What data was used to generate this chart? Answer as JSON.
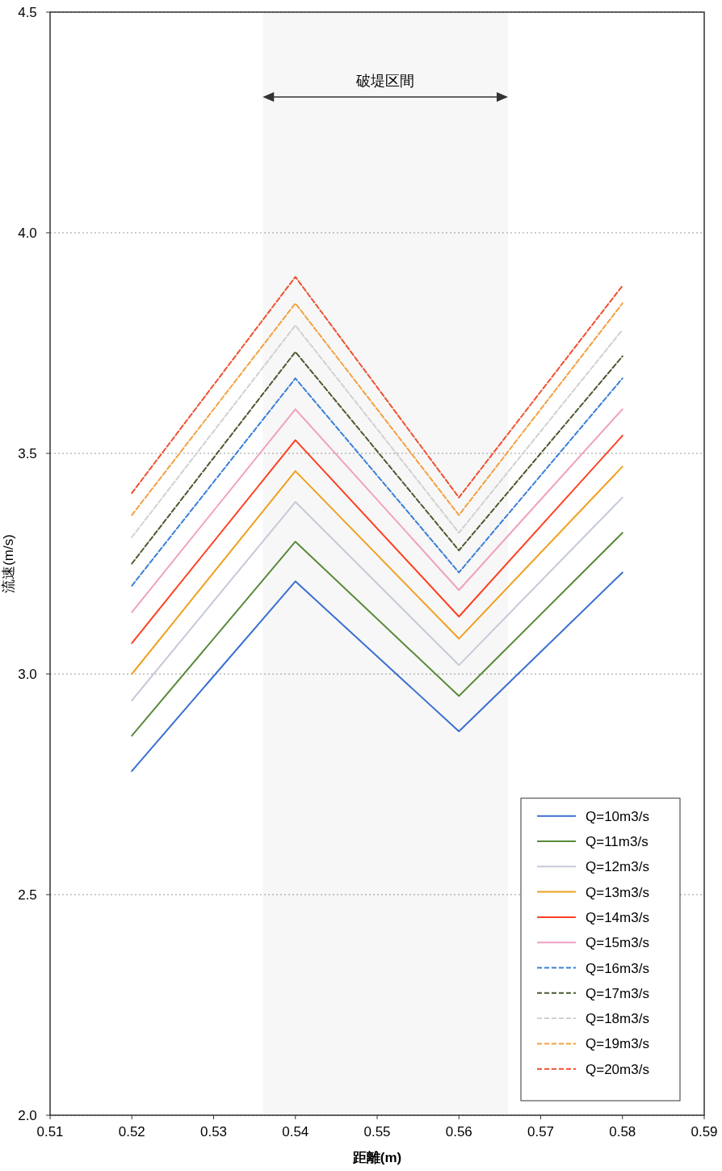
{
  "chart_data": {
    "type": "line",
    "xlabel": "距離(m)",
    "ylabel": "流速(m/s)",
    "xlim": [
      0.51,
      0.59
    ],
    "xticks": [
      0.51,
      0.52,
      0.53,
      0.54,
      0.55,
      0.56,
      0.57,
      0.58,
      0.59
    ],
    "ylim": [
      2.0,
      4.5
    ],
    "yticks": [
      {
        "value": 2.0,
        "label": "2.0"
      },
      {
        "value": 2.5,
        "label": "2.5"
      },
      {
        "value": 3.0,
        "label": "3.0"
      },
      {
        "value": 3.5,
        "label": "3.5"
      },
      {
        "value": 4.0,
        "label": "4.0"
      },
      {
        "value": 4.5,
        "label": "4.5"
      }
    ],
    "grid": "y",
    "legend": "bottom right",
    "marker": "none",
    "x": [
      0.52,
      0.54,
      0.56,
      0.58
    ],
    "bands": [
      {
        "axis": "x",
        "from": 0.536,
        "to": 0.566,
        "label": "破堤区間",
        "color": "#333333"
      }
    ],
    "series": [
      {
        "name": "Q=10m3/s",
        "color": "#3a6fd0",
        "line_style": "solid",
        "values": [
          2.78,
          3.21,
          2.87,
          3.23
        ]
      },
      {
        "name": "Q=11m3/s",
        "color": "#5a8a3a",
        "line_style": "solid",
        "values": [
          2.86,
          3.3,
          2.95,
          3.32
        ]
      },
      {
        "name": "Q=12m3/s",
        "color": "#c4cad8",
        "line_style": "solid",
        "values": [
          2.94,
          3.39,
          3.02,
          3.4
        ]
      },
      {
        "name": "Q=13m3/s",
        "color": "#f0a020",
        "line_style": "solid",
        "values": [
          3.0,
          3.46,
          3.08,
          3.47
        ]
      },
      {
        "name": "Q=14m3/s",
        "color": "#ff4020",
        "line_style": "solid",
        "values": [
          3.07,
          3.53,
          3.13,
          3.54
        ]
      },
      {
        "name": "Q=15m3/s",
        "color": "#f0a0c0",
        "line_style": "solid",
        "values": [
          3.14,
          3.6,
          3.19,
          3.6
        ]
      },
      {
        "name": "Q=16m3/s",
        "color": "#3a7fd8",
        "line_style": "dashed",
        "values": [
          3.2,
          3.67,
          3.23,
          3.67
        ]
      },
      {
        "name": "Q=17m3/s",
        "color": "#4a5a30",
        "line_style": "dashed",
        "values": [
          3.25,
          3.73,
          3.28,
          3.72
        ]
      },
      {
        "name": "Q=18m3/s",
        "color": "#d0d0d0",
        "line_style": "dashed",
        "values": [
          3.31,
          3.79,
          3.32,
          3.78
        ]
      },
      {
        "name": "Q=19m3/s",
        "color": "#f5a040",
        "line_style": "dashed",
        "values": [
          3.36,
          3.84,
          3.36,
          3.84
        ]
      },
      {
        "name": "Q=20m3/s",
        "color": "#f05030",
        "line_style": "dashed",
        "values": [
          3.41,
          3.9,
          3.4,
          3.88
        ]
      }
    ]
  }
}
